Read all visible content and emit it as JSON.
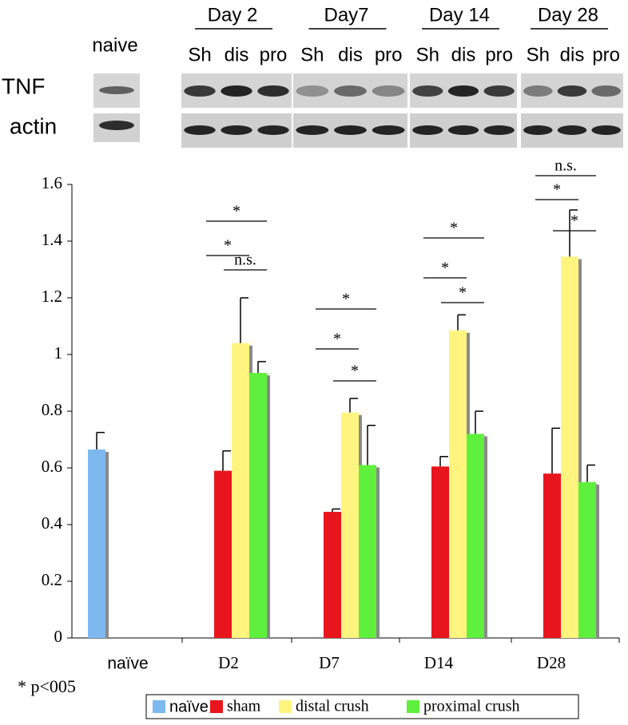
{
  "blot": {
    "naive_label": "naive",
    "row_labels": [
      "TNF",
      "actin"
    ],
    "days": [
      {
        "label": "Day 2",
        "lanes": [
          "Sh",
          "dis",
          "pro"
        ]
      },
      {
        "label": "Day7",
        "lanes": [
          "Sh",
          "dis",
          "pro"
        ]
      },
      {
        "label": "Day 14",
        "lanes": [
          "Sh",
          "dis",
          "pro"
        ]
      },
      {
        "label": "Day 28",
        "lanes": [
          "Sh",
          "dis",
          "pro"
        ]
      }
    ]
  },
  "chart_data": {
    "type": "bar",
    "categories": [
      "naïve",
      "D2",
      "D7",
      "D14",
      "D28"
    ],
    "series": [
      {
        "name": "naïve",
        "color": "#7db9ef",
        "values": [
          0.665,
          null,
          null,
          null,
          null
        ],
        "errors": [
          0.06,
          null,
          null,
          null,
          null
        ]
      },
      {
        "name": "sham",
        "color": "#e8161c",
        "values": [
          null,
          0.59,
          0.445,
          0.605,
          0.58
        ],
        "errors": [
          null,
          0.07,
          0.01,
          0.035,
          0.16
        ]
      },
      {
        "name": "distal crush",
        "color": "#fff47e",
        "values": [
          null,
          1.04,
          0.795,
          1.085,
          1.345
        ],
        "errors": [
          null,
          0.16,
          0.05,
          0.055,
          0.165
        ]
      },
      {
        "name": "proximal crush",
        "color": "#5ef03c",
        "values": [
          null,
          0.935,
          0.61,
          0.72,
          0.55
        ],
        "errors": [
          null,
          0.04,
          0.14,
          0.08,
          0.06
        ]
      }
    ],
    "ylim": [
      0,
      1.6
    ],
    "yticks": [
      0,
      0.2,
      0.4,
      0.6,
      0.8,
      1,
      1.2,
      1.4,
      1.6
    ],
    "annotations": [
      "*",
      "*",
      "n.s.",
      "*",
      "*",
      "*",
      "*",
      "*",
      "*",
      "n.s.",
      "*",
      "*"
    ],
    "footnote": "* p<005"
  }
}
